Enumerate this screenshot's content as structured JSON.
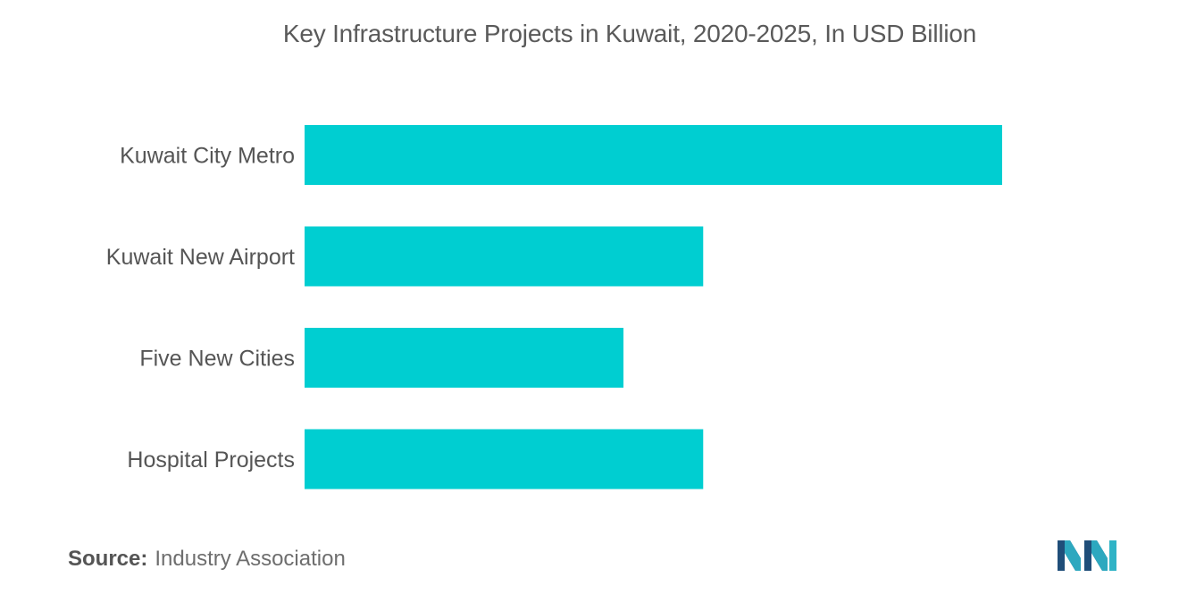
{
  "chart_data": {
    "type": "bar",
    "orientation": "horizontal",
    "title": "Key Infrastructure Projects in Kuwait, 2020-2025, In USD Billion",
    "categories": [
      "Kuwait City Metro",
      "Kuwait New Airport",
      "Five New Cities",
      "Hospital Projects"
    ],
    "values": [
      7.0,
      4.0,
      3.2,
      4.0
    ],
    "xlim": [
      0,
      7.0
    ],
    "xlabel": "",
    "ylabel": "",
    "grid": false,
    "legend": "none",
    "bar_color": "#00CED1"
  },
  "source": {
    "label": "Source:",
    "text": "Industry Association"
  },
  "colors": {
    "title": "#5a5a5a",
    "category_label": "#555555",
    "source": "#6e6e6e",
    "logo_dark": "#1f4e79",
    "logo_teal": "#2fb3c6"
  },
  "logo": {
    "icon": "mordor-intelligence-logo-icon"
  }
}
